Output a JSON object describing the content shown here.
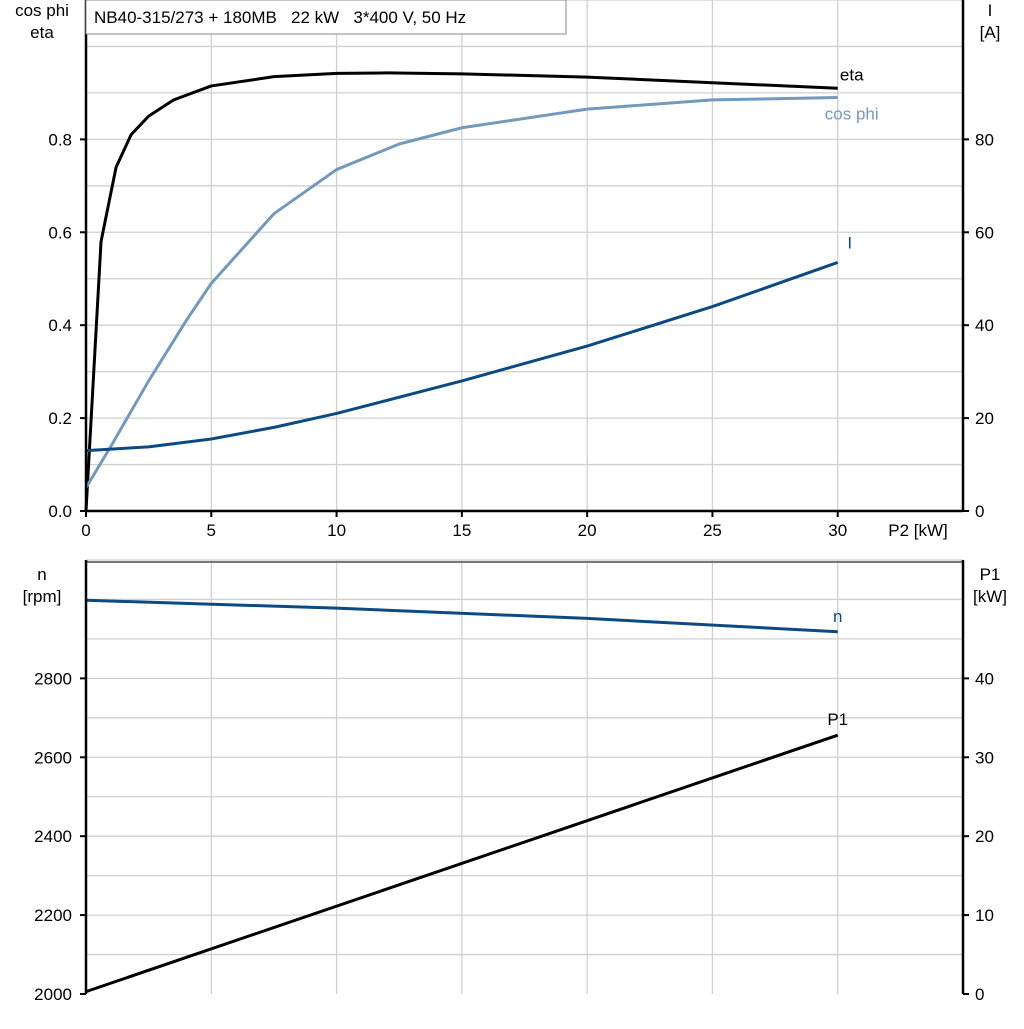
{
  "chart_data": [
    {
      "type": "line",
      "title": "NB40-315/273 + 180MB   22 kW   3*400 V, 50 Hz",
      "xlabel": "P2 [kW]",
      "ylabel_left": [
        "cos phi",
        "eta"
      ],
      "ylabel_right": [
        "I",
        "[A]"
      ],
      "xlim": [
        0,
        35
      ],
      "ylim_left": [
        0,
        1.1
      ],
      "ylim_right": [
        0,
        110
      ],
      "x_ticks": [
        0,
        5,
        10,
        15,
        20,
        25,
        30
      ],
      "y_ticks_left": [
        "0.0",
        "0.2",
        "0.4",
        "0.6",
        "0.8"
      ],
      "y_ticks_right": [
        "0",
        "20",
        "40",
        "60",
        "80"
      ],
      "grid": true,
      "series": [
        {
          "name": "eta",
          "axis": "left",
          "color": "#000000",
          "x": [
            0,
            0.6,
            1.2,
            1.8,
            2.5,
            3.5,
            5,
            7.5,
            10,
            12,
            15,
            20,
            25,
            30
          ],
          "y": [
            0,
            0.58,
            0.74,
            0.81,
            0.85,
            0.885,
            0.915,
            0.935,
            0.942,
            0.943,
            0.941,
            0.934,
            0.922,
            0.91
          ]
        },
        {
          "name": "cos phi",
          "axis": "left",
          "color": "#7399bb",
          "x": [
            0,
            1,
            2.5,
            4,
            5,
            7.5,
            10,
            12.5,
            15,
            20,
            25,
            30
          ],
          "y": [
            0.05,
            0.14,
            0.28,
            0.41,
            0.49,
            0.64,
            0.735,
            0.79,
            0.825,
            0.865,
            0.885,
            0.89
          ]
        },
        {
          "name": "I",
          "axis": "right",
          "color": "#0d4a82",
          "x": [
            0,
            2.5,
            5,
            7.5,
            10,
            15,
            20,
            25,
            30
          ],
          "y": [
            13,
            13.8,
            15.5,
            18,
            21,
            28,
            35.5,
            44,
            53.5
          ]
        }
      ]
    },
    {
      "type": "line",
      "ylabel_left": [
        "n",
        "[rpm]"
      ],
      "ylabel_right": [
        "P1",
        "[kW]"
      ],
      "xlim": [
        0,
        35
      ],
      "ylim_left": [
        2000,
        3100
      ],
      "ylim_right": [
        0,
        55
      ],
      "y_ticks_left": [
        "2000",
        "2200",
        "2400",
        "2600",
        "2800"
      ],
      "y_ticks_right": [
        "0",
        "10",
        "20",
        "30",
        "40"
      ],
      "grid": true,
      "series": [
        {
          "name": "n",
          "axis": "left",
          "color": "#0d4a82",
          "x": [
            0,
            10,
            20,
            30
          ],
          "y": [
            2998,
            2978,
            2952,
            2918
          ]
        },
        {
          "name": "P1",
          "axis": "right",
          "color": "#000000",
          "x": [
            0,
            30
          ],
          "y": [
            0.3,
            32.8
          ]
        }
      ]
    }
  ]
}
